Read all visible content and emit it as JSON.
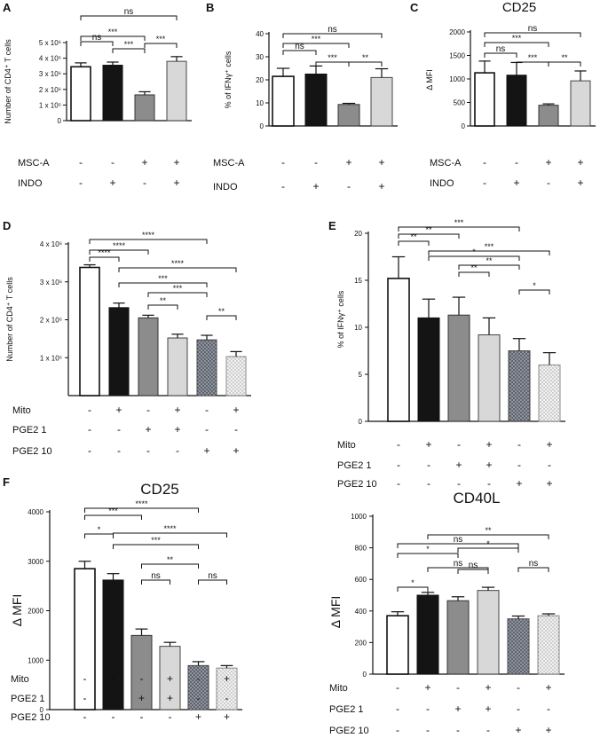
{
  "colors": {
    "white": "#ffffff",
    "black": "#141414",
    "dark_gray": "#8c8c8c",
    "light_gray": "#d8d8d8",
    "dotted_dark": "#5f6570",
    "dotted_light": "#e2e2e2"
  },
  "chart_data": [
    {
      "panel": "A",
      "title": "",
      "type": "bar",
      "ylabel": "Number of CD4⁺ T cells",
      "ylim": [
        0,
        5000000
      ],
      "yticks": [
        0,
        1000000,
        2000000,
        3000000,
        4000000,
        5000000
      ],
      "ytick_labels": [
        "0",
        "1 x 10⁶",
        "2 x 10⁶",
        "3 x 10⁶",
        "4 x 10⁶",
        "5 x 10⁶"
      ],
      "values": [
        3450000,
        3550000,
        1650000,
        3800000
      ],
      "errors": [
        250000,
        200000,
        200000,
        300000
      ],
      "fills": [
        "white",
        "black",
        "dark_gray",
        "light_gray"
      ],
      "row_labels": [
        "MSC-A",
        "INDO"
      ],
      "row_signs": [
        [
          "-",
          "-",
          "+",
          "+"
        ],
        [
          "-",
          "+",
          "-",
          "+"
        ]
      ],
      "comparisons": [
        {
          "a": 0,
          "b": 3,
          "label": "ns"
        },
        {
          "a": 0,
          "b": 2,
          "label": "***"
        },
        {
          "a": 0,
          "b": 1,
          "label": "ns"
        },
        {
          "a": 1,
          "b": 2,
          "label": "***"
        },
        {
          "a": 2,
          "b": 3,
          "label": "***"
        }
      ]
    },
    {
      "panel": "B",
      "title": "",
      "type": "bar",
      "ylabel": "% of IFNγ⁺ cells",
      "ylim": [
        0,
        40
      ],
      "yticks": [
        0,
        10,
        20,
        30,
        40
      ],
      "ytick_labels": [
        "0",
        "10",
        "20",
        "30",
        "40"
      ],
      "values": [
        21.5,
        22.5,
        9.3,
        21
      ],
      "errors": [
        3.5,
        3.5,
        0.5,
        3.8
      ],
      "fills": [
        "white",
        "black",
        "dark_gray",
        "light_gray"
      ],
      "row_labels": [
        "MSC-A",
        "INDO"
      ],
      "row_signs": [
        [
          "-",
          "-",
          "+",
          "+"
        ],
        [
          "-",
          "+",
          "-",
          "+"
        ]
      ],
      "comparisons": [
        {
          "a": 0,
          "b": 3,
          "label": "ns"
        },
        {
          "a": 0,
          "b": 2,
          "label": "***"
        },
        {
          "a": 0,
          "b": 1,
          "label": "ns"
        },
        {
          "a": 1,
          "b": 2,
          "label": "***"
        },
        {
          "a": 2,
          "b": 3,
          "label": "**"
        }
      ]
    },
    {
      "panel": "C",
      "title": "CD25",
      "type": "bar",
      "ylabel": "Δ MFI",
      "ylim": [
        0,
        2000
      ],
      "yticks": [
        0,
        500,
        1000,
        1500,
        2000
      ],
      "ytick_labels": [
        "0",
        "500",
        "1000",
        "1500",
        "2000"
      ],
      "values": [
        1130,
        1080,
        440,
        960
      ],
      "errors": [
        250,
        270,
        30,
        210
      ],
      "fills": [
        "white",
        "black",
        "dark_gray",
        "light_gray"
      ],
      "row_labels": [
        "MSC-A",
        "INDO"
      ],
      "row_signs": [
        [
          "-",
          "-",
          "+",
          "+"
        ],
        [
          "-",
          "+",
          "-",
          "+"
        ]
      ],
      "comparisons": [
        {
          "a": 0,
          "b": 3,
          "label": "ns"
        },
        {
          "a": 0,
          "b": 2,
          "label": "***"
        },
        {
          "a": 0,
          "b": 1,
          "label": "ns"
        },
        {
          "a": 1,
          "b": 2,
          "label": "***"
        },
        {
          "a": 2,
          "b": 3,
          "label": "**"
        }
      ]
    },
    {
      "panel": "D",
      "title": "",
      "type": "bar",
      "ylabel": "Number of CD4⁺ T cells",
      "ylim": [
        0,
        4000000
      ],
      "yticks": [
        1000000,
        2000000,
        3000000,
        4000000
      ],
      "ytick_labels": [
        "1 x 10⁶",
        "2 x 10⁶",
        "3 x 10⁶",
        "4 x 10⁶"
      ],
      "values": [
        3380000,
        2320000,
        2050000,
        1520000,
        1470000,
        1030000
      ],
      "errors": [
        70000,
        120000,
        70000,
        100000,
        120000,
        130000
      ],
      "fills": [
        "white",
        "black",
        "dark_gray",
        "light_gray",
        "dotted_dark",
        "dotted_light"
      ],
      "row_labels": [
        "Mito",
        "PGE2 1",
        "PGE2 10"
      ],
      "row_signs": [
        [
          "-",
          "+",
          "-",
          "+",
          "-",
          "+"
        ],
        [
          "-",
          "-",
          "+",
          "+",
          "-",
          "-"
        ],
        [
          "-",
          "-",
          "-",
          "-",
          "+",
          "+"
        ]
      ],
      "comparisons": [
        {
          "a": 0,
          "b": 4,
          "label": "****"
        },
        {
          "a": 0,
          "b": 2,
          "label": "****"
        },
        {
          "a": 0,
          "b": 1,
          "label": "****"
        },
        {
          "a": 1,
          "b": 5,
          "label": "****"
        },
        {
          "a": 1,
          "b": 4,
          "label": "***"
        },
        {
          "a": 2,
          "b": 4,
          "label": "***"
        },
        {
          "a": 2,
          "b": 3,
          "label": "**"
        },
        {
          "a": 4,
          "b": 5,
          "label": "**"
        }
      ]
    },
    {
      "panel": "E",
      "title": "",
      "type": "bar",
      "ylabel": "% of IFNγ⁺ cells",
      "ylim": [
        0,
        20
      ],
      "yticks": [
        0,
        5,
        10,
        15,
        20
      ],
      "ytick_labels": [
        "0",
        "5",
        "10",
        "15",
        "20"
      ],
      "values": [
        15.2,
        11.0,
        11.3,
        9.2,
        7.5,
        6.0
      ],
      "errors": [
        2.3,
        2.0,
        1.9,
        1.8,
        1.3,
        1.3
      ],
      "fills": [
        "white",
        "black",
        "dark_gray",
        "light_gray",
        "dotted_dark",
        "dotted_light"
      ],
      "row_labels": [
        "Mito",
        "PGE2 1",
        "PGE2 10"
      ],
      "row_signs": [
        [
          "-",
          "+",
          "-",
          "+",
          "-",
          "+"
        ],
        [
          "-",
          "-",
          "+",
          "+",
          "-",
          "-"
        ],
        [
          "-",
          "-",
          "-",
          "-",
          "+",
          "+"
        ]
      ],
      "comparisons": [
        {
          "a": 0,
          "b": 4,
          "label": "***"
        },
        {
          "a": 0,
          "b": 2,
          "label": "**"
        },
        {
          "a": 0,
          "b": 1,
          "label": "**"
        },
        {
          "a": 1,
          "b": 5,
          "label": "***"
        },
        {
          "a": 1,
          "b": 4,
          "label": "*"
        },
        {
          "a": 2,
          "b": 4,
          "label": "**"
        },
        {
          "a": 2,
          "b": 3,
          "label": "**"
        },
        {
          "a": 4,
          "b": 5,
          "label": "*"
        }
      ]
    },
    {
      "panel": "F",
      "title": "CD25",
      "type": "bar",
      "ylabel": "Δ MFI",
      "ylim": [
        0,
        4000
      ],
      "yticks": [
        0,
        1000,
        2000,
        3000,
        4000
      ],
      "ytick_labels": [
        "0",
        "1000",
        "2000",
        "3000",
        "4000"
      ],
      "values": [
        2850,
        2620,
        1500,
        1280,
        890,
        840
      ],
      "errors": [
        150,
        130,
        130,
        80,
        80,
        50
      ],
      "fills": [
        "white",
        "black",
        "dark_gray",
        "light_gray",
        "dotted_dark",
        "dotted_light"
      ],
      "row_labels": [
        "Mito",
        "PGE2 1",
        "PGE2 10"
      ],
      "row_signs": [
        [
          "-",
          "+",
          "-",
          "+",
          "-",
          "+"
        ],
        [
          "-",
          "-",
          "+",
          "+",
          "-",
          "-"
        ],
        [
          "-",
          "-",
          "-",
          "-",
          "+",
          "+"
        ]
      ],
      "comparisons": [
        {
          "a": 0,
          "b": 4,
          "label": "****"
        },
        {
          "a": 0,
          "b": 2,
          "label": "***"
        },
        {
          "a": 0,
          "b": 1,
          "label": "*"
        },
        {
          "a": 1,
          "b": 5,
          "label": "****"
        },
        {
          "a": 1,
          "b": 4,
          "label": "***"
        },
        {
          "a": 2,
          "b": 4,
          "label": "**"
        },
        {
          "a": 2,
          "b": 3,
          "label": "ns"
        },
        {
          "a": 4,
          "b": 5,
          "label": "ns"
        }
      ]
    },
    {
      "panel": "",
      "title": "CD40L",
      "type": "bar",
      "ylabel": "Δ MFI",
      "ylim": [
        0,
        1000
      ],
      "yticks": [
        0,
        200,
        400,
        600,
        800,
        1000
      ],
      "ytick_labels": [
        "0",
        "200",
        "400",
        "600",
        "800",
        "1000"
      ],
      "values": [
        370,
        500,
        465,
        530,
        350,
        370
      ],
      "errors": [
        25,
        18,
        25,
        20,
        18,
        12
      ],
      "fills": [
        "white",
        "black",
        "dark_gray",
        "light_gray",
        "dotted_dark",
        "dotted_light"
      ],
      "row_labels": [
        "Mito",
        "PGE2 1",
        "PGE2 10"
      ],
      "row_signs": [
        [
          "-",
          "+",
          "-",
          "+",
          "-",
          "+"
        ],
        [
          "-",
          "-",
          "+",
          "+",
          "-",
          "-"
        ],
        [
          "-",
          "-",
          "-",
          "-",
          "+",
          "+"
        ]
      ],
      "comparisons": [
        {
          "a": 0,
          "b": 4,
          "label": "ns"
        },
        {
          "a": 0,
          "b": 2,
          "label": "*"
        },
        {
          "a": 0,
          "b": 1,
          "label": "*"
        },
        {
          "a": 1,
          "b": 5,
          "label": "**"
        },
        {
          "a": 1,
          "b": 3,
          "label": "ns"
        },
        {
          "a": 2,
          "b": 4,
          "label": "*"
        },
        {
          "a": 2,
          "b": 3,
          "label": "ns"
        },
        {
          "a": 4,
          "b": 5,
          "label": "ns"
        }
      ]
    }
  ]
}
